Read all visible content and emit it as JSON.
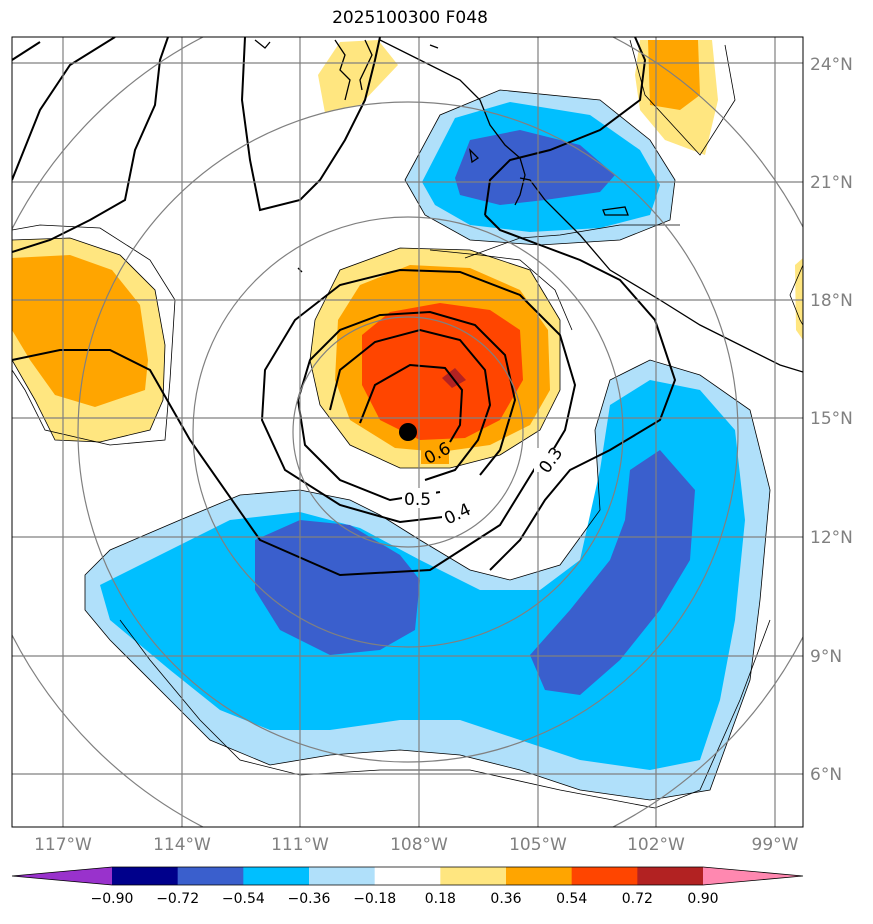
{
  "title": "2025100300 F048",
  "lon_ticks": [
    "117°W",
    "114°W",
    "111°W",
    "108°W",
    "105°W",
    "102°W",
    "99°W"
  ],
  "lat_ticks": [
    "24°N",
    "21°N",
    "18°N",
    "15°N",
    "12°N",
    "9°N",
    "6°N"
  ],
  "contour_labels": [
    "0.6",
    "0.5",
    "0.4",
    "0.3"
  ],
  "colorbar": {
    "tick_labels": [
      "−0.90",
      "−0.72",
      "−0.54",
      "−0.36",
      "−0.18",
      "0.18",
      "0.36",
      "0.54",
      "0.72",
      "0.90"
    ],
    "colors": [
      "#9932cc",
      "#00008b",
      "#3a5fcd",
      "#00bfff",
      "#b0e0fa",
      "#ffffff",
      "#ffe680",
      "#ffa500",
      "#ff4500",
      "#b22222",
      "#ff88b0"
    ]
  },
  "center_marker": "storm-center-dot"
}
